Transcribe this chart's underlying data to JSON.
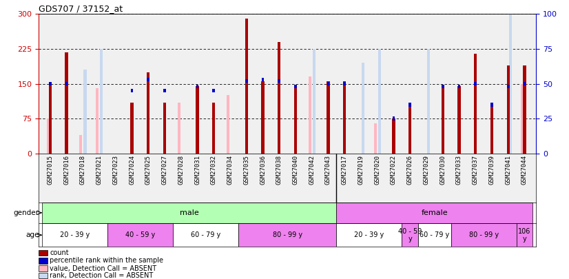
{
  "title": "GDS707 / 37152_at",
  "samples": [
    "GSM27015",
    "GSM27016",
    "GSM27018",
    "GSM27021",
    "GSM27023",
    "GSM27024",
    "GSM27025",
    "GSM27027",
    "GSM27028",
    "GSM27031",
    "GSM27032",
    "GSM27034",
    "GSM27035",
    "GSM27036",
    "GSM27038",
    "GSM27040",
    "GSM27042",
    "GSM27043",
    "GSM27017",
    "GSM27019",
    "GSM27020",
    "GSM27022",
    "GSM27026",
    "GSM27029",
    "GSM27030",
    "GSM27033",
    "GSM27037",
    "GSM27039",
    "GSM27041",
    "GSM27044"
  ],
  "count_values": [
    150,
    218,
    0,
    0,
    0,
    110,
    175,
    110,
    0,
    145,
    110,
    0,
    290,
    155,
    240,
    145,
    0,
    155,
    155,
    0,
    0,
    75,
    105,
    0,
    145,
    145,
    215,
    100,
    190,
    190
  ],
  "rank_values": [
    50,
    50,
    0,
    0,
    0,
    45,
    53,
    45,
    0,
    48,
    45,
    0,
    52,
    53,
    52,
    48,
    0,
    50,
    50,
    0,
    0,
    25,
    35,
    0,
    48,
    48,
    50,
    35,
    48,
    50
  ],
  "absent_count_values": [
    75,
    0,
    40,
    140,
    0,
    0,
    0,
    0,
    110,
    0,
    0,
    125,
    0,
    0,
    0,
    0,
    165,
    0,
    0,
    0,
    65,
    0,
    0,
    0,
    0,
    0,
    0,
    0,
    0,
    150
  ],
  "absent_rank_values": [
    0,
    0,
    60,
    75,
    0,
    0,
    0,
    0,
    0,
    0,
    0,
    0,
    0,
    0,
    0,
    0,
    75,
    0,
    0,
    65,
    75,
    0,
    0,
    75,
    0,
    0,
    0,
    0,
    145,
    0
  ],
  "gender_groups": [
    {
      "label": "male",
      "start": 0,
      "end": 18,
      "color": "#b3ffb3"
    },
    {
      "label": "female",
      "start": 18,
      "end": 30,
      "color": "#ee82ee"
    }
  ],
  "age_groups": [
    {
      "label": "20 - 39 y",
      "start": 0,
      "end": 4,
      "color": "#ffffff"
    },
    {
      "label": "40 - 59 y",
      "start": 4,
      "end": 8,
      "color": "#ee82ee"
    },
    {
      "label": "60 - 79 y",
      "start": 8,
      "end": 12,
      "color": "#ffffff"
    },
    {
      "label": "80 - 99 y",
      "start": 12,
      "end": 18,
      "color": "#ee82ee"
    },
    {
      "label": "20 - 39 y",
      "start": 18,
      "end": 22,
      "color": "#ffffff"
    },
    {
      "label": "40 - 59\ny",
      "start": 22,
      "end": 23,
      "color": "#ee82ee"
    },
    {
      "label": "60 - 79 y",
      "start": 23,
      "end": 25,
      "color": "#ffffff"
    },
    {
      "label": "80 - 99 y",
      "start": 25,
      "end": 29,
      "color": "#ee82ee"
    },
    {
      "label": "106\ny",
      "start": 29,
      "end": 30,
      "color": "#ee82ee"
    }
  ],
  "ylim_left": [
    0,
    300
  ],
  "ylim_right": [
    0,
    100
  ],
  "yticks_left": [
    0,
    75,
    150,
    225,
    300
  ],
  "yticks_right": [
    0,
    25,
    50,
    75,
    100
  ],
  "left_axis_color": "#cc0000",
  "right_axis_color": "#0000cc",
  "bar_color_count": "#aa0000",
  "bar_color_rank": "#0000cc",
  "bar_color_absent_count": "#ffb6c1",
  "bar_color_absent_rank": "#c8d8f0",
  "chart_bg": "#f0f0f0",
  "legend_items": [
    {
      "color": "#aa0000",
      "label": "count"
    },
    {
      "color": "#0000cc",
      "label": "percentile rank within the sample"
    },
    {
      "color": "#ffb6c1",
      "label": "value, Detection Call = ABSENT"
    },
    {
      "color": "#c8d8f0",
      "label": "rank, Detection Call = ABSENT"
    }
  ]
}
